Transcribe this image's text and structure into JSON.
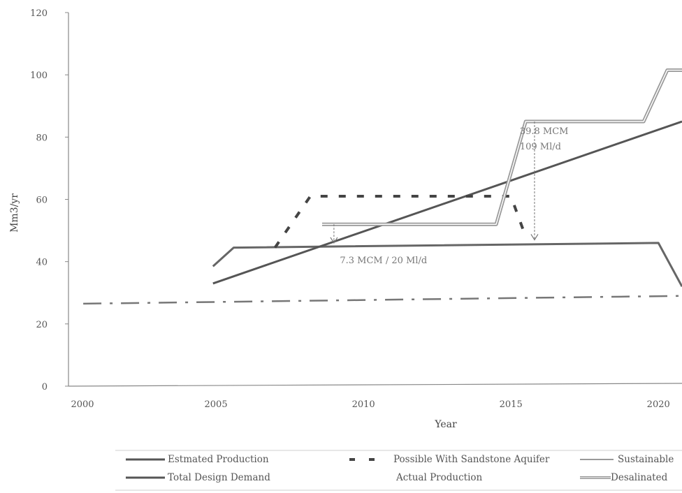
{
  "chart_data": {
    "type": "line",
    "title": "",
    "xlabel": "Year",
    "ylabel": "Mm3/yr",
    "xlim": [
      2000,
      2020.8
    ],
    "ylim": [
      0,
      120
    ],
    "xticks": [
      2000,
      2005,
      2010,
      2015,
      2020
    ],
    "yticks": [
      0,
      20,
      40,
      60,
      80,
      100,
      120
    ],
    "grid": false,
    "legend_position": "bottom",
    "series": [
      {
        "name": "Estimated Production",
        "style": "solid",
        "color": "#666666",
        "x": [
          2004.9,
          2005.6,
          2020.0,
          2020.8
        ],
        "y": [
          38.5,
          44.5,
          46.0,
          32.0
        ]
      },
      {
        "name": "Total Design Demand",
        "style": "solid",
        "color": "#555555",
        "x": [
          2004.9,
          2020.8
        ],
        "y": [
          33.0,
          85.0
        ]
      },
      {
        "name": "Possible With Sandstone Aquifer",
        "style": "dashed",
        "color": "#444444",
        "x": [
          2007.0,
          2008.2,
          2015.0,
          2015.5
        ],
        "y": [
          44.5,
          61.0,
          61.0,
          48.0
        ]
      },
      {
        "name": "Sustainable",
        "style": "dashdot",
        "color": "#777777",
        "x": [
          2000.5,
          2020.8
        ],
        "y": [
          26.5,
          29.0
        ]
      },
      {
        "name": "Actual Production",
        "style": "hidden",
        "color": "#999999",
        "x": [],
        "y": []
      },
      {
        "name": "Desalinated",
        "style": "double",
        "color": "#999999",
        "x": [
          2008.6,
          2014.5,
          2015.5,
          2019.5,
          2020.3,
          2020.8
        ],
        "y": [
          52.0,
          52.0,
          85.0,
          85.0,
          101.5,
          101.5
        ]
      }
    ],
    "annotations": [
      {
        "text": "39.8 MCM",
        "x": 2015.3,
        "y": 81.0
      },
      {
        "text": "109 Ml/d",
        "x": 2015.3,
        "y": 76.0
      },
      {
        "text": "7.3 MCM / 20 Ml/d",
        "x": 2009.2,
        "y": 39.5
      }
    ],
    "arrows": [
      {
        "x": 2009.0,
        "y_from": 52.0,
        "y_to": 46.0
      },
      {
        "x": 2015.8,
        "y_from": 85.0,
        "y_to": 47.0
      }
    ],
    "legend_rows": [
      [
        {
          "label": "Estmated Production",
          "style": "solid"
        },
        {
          "label": "Possible With Sandstone Aquifer",
          "style": "dashed"
        },
        {
          "label": "Sustainable",
          "style": "dashdot"
        }
      ],
      [
        {
          "label": "Total Design Demand",
          "style": "solid"
        },
        {
          "label": "Actual Production",
          "style": "hidden"
        },
        {
          "label": "Desalinated",
          "style": "double"
        }
      ]
    ]
  }
}
